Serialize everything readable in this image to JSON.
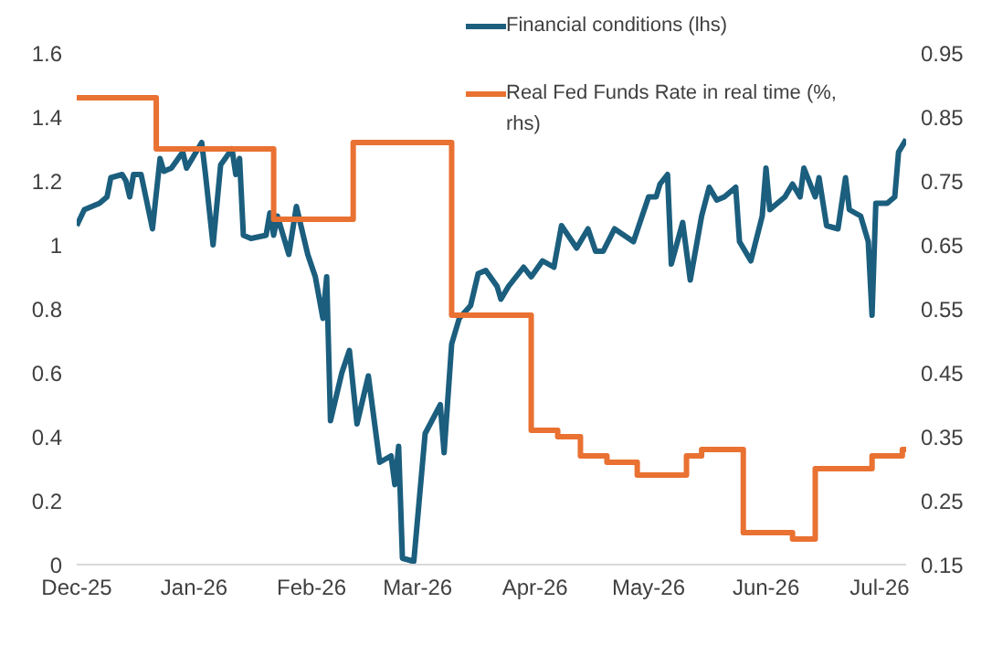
{
  "chart_data": {
    "type": "line",
    "legend": "top right",
    "grid": false,
    "marker": "none",
    "xlim": [
      "2025-12-01",
      "2026-07-08"
    ],
    "xticks": [
      {
        "value": "2025-12-01",
        "label": "Dec-25"
      },
      {
        "value": "2026-01-01",
        "label": "Jan-26"
      },
      {
        "value": "2026-02-01",
        "label": "Feb-26"
      },
      {
        "value": "2026-03-01",
        "label": "Mar-26"
      },
      {
        "value": "2026-04-01",
        "label": "Apr-26"
      },
      {
        "value": "2026-05-01",
        "label": "May-26"
      },
      {
        "value": "2026-06-01",
        "label": "Jun-26"
      },
      {
        "value": "2026-07-01",
        "label": "Jul-26"
      }
    ],
    "ylim": [
      0,
      1.6
    ],
    "yticks": [
      0,
      0.2,
      0.4,
      0.6,
      0.8,
      1,
      1.2,
      1.4,
      1.6
    ],
    "y2lim": [
      0.15,
      0.95
    ],
    "y2ticks": [
      0.15,
      0.25,
      0.35,
      0.45,
      0.55,
      0.65,
      0.75,
      0.85,
      0.95
    ],
    "series": [
      {
        "name": "Financial conditions (lhs)",
        "type": "line",
        "color": "#1b5e7e",
        "x": [
          "2025-12-01",
          "2025-12-03",
          "2025-12-07",
          "2025-12-09",
          "2025-12-10",
          "2025-12-13",
          "2025-12-14",
          "2025-12-15",
          "2025-12-16",
          "2025-12-18",
          "2025-12-21",
          "2025-12-23",
          "2025-12-24",
          "2025-12-26",
          "2025-12-29",
          "2025-12-30",
          "2026-01-03",
          "2026-01-04",
          "2026-01-06",
          "2026-01-08",
          "2026-01-11",
          "2026-01-12",
          "2026-01-13",
          "2026-01-14",
          "2026-01-16",
          "2026-01-20",
          "2026-01-21",
          "2026-01-22",
          "2026-01-23",
          "2026-01-26",
          "2026-01-28",
          "2026-01-31",
          "2026-02-02",
          "2026-02-04",
          "2026-02-05",
          "2026-02-06",
          "2026-02-09",
          "2026-02-11",
          "2026-02-13",
          "2026-02-16",
          "2026-02-19",
          "2026-02-22",
          "2026-02-23",
          "2026-02-24",
          "2026-02-25",
          "2026-02-28",
          "2026-03-03",
          "2026-03-07",
          "2026-03-08",
          "2026-03-10",
          "2026-03-12",
          "2026-03-15",
          "2026-03-17",
          "2026-03-19",
          "2026-03-22",
          "2026-03-23",
          "2026-03-25",
          "2026-03-29",
          "2026-03-31",
          "2026-04-03",
          "2026-04-06",
          "2026-04-08",
          "2026-04-12",
          "2026-04-15",
          "2026-04-17",
          "2026-04-19",
          "2026-04-22",
          "2026-04-27",
          "2026-05-01",
          "2026-05-03",
          "2026-05-04",
          "2026-05-06",
          "2026-05-07",
          "2026-05-10",
          "2026-05-12",
          "2026-05-15",
          "2026-05-17",
          "2026-05-19",
          "2026-05-21",
          "2026-05-24",
          "2026-05-25",
          "2026-05-28",
          "2026-05-31",
          "2026-06-01",
          "2026-06-02",
          "2026-06-06",
          "2026-06-08",
          "2026-06-10",
          "2026-06-11",
          "2026-06-14",
          "2026-06-15",
          "2026-06-17",
          "2026-06-20",
          "2026-06-22",
          "2026-06-23",
          "2026-06-26",
          "2026-06-28",
          "2026-06-29",
          "2026-06-30",
          "2026-07-03",
          "2026-07-05",
          "2026-07-06",
          "2026-07-08"
        ],
        "values": [
          1.06,
          1.11,
          1.13,
          1.15,
          1.21,
          1.22,
          1.2,
          1.15,
          1.22,
          1.22,
          1.05,
          1.27,
          1.23,
          1.24,
          1.29,
          1.24,
          1.32,
          1.22,
          1.0,
          1.25,
          1.3,
          1.22,
          1.27,
          1.03,
          1.02,
          1.03,
          1.1,
          1.03,
          1.09,
          0.97,
          1.12,
          0.97,
          0.9,
          0.77,
          0.9,
          0.45,
          0.6,
          0.67,
          0.44,
          0.59,
          0.32,
          0.34,
          0.25,
          0.37,
          0.02,
          0.01,
          0.41,
          0.5,
          0.35,
          0.69,
          0.77,
          0.81,
          0.91,
          0.92,
          0.87,
          0.83,
          0.87,
          0.93,
          0.9,
          0.95,
          0.93,
          1.06,
          0.99,
          1.05,
          0.98,
          0.98,
          1.05,
          1.01,
          1.15,
          1.15,
          1.19,
          1.22,
          0.94,
          1.07,
          0.89,
          1.09,
          1.18,
          1.14,
          1.15,
          1.18,
          1.01,
          0.95,
          1.09,
          1.24,
          1.11,
          1.15,
          1.19,
          1.15,
          1.24,
          1.15,
          1.21,
          1.06,
          1.05,
          1.21,
          1.11,
          1.09,
          1.01,
          0.78,
          1.13,
          1.13,
          1.15,
          1.29,
          1.33
        ]
      },
      {
        "name": "Real Fed Funds Rate in real time (%, rhs)",
        "type": "step",
        "axis": "y2",
        "color": "#e97132",
        "x": [
          "2025-12-01",
          "2025-12-22",
          "2026-01-22",
          "2026-02-12",
          "2026-03-10",
          "2026-03-31",
          "2026-04-07",
          "2026-04-13",
          "2026-04-20",
          "2026-04-28",
          "2026-05-11",
          "2026-05-15",
          "2026-05-26",
          "2026-06-08",
          "2026-06-14",
          "2026-06-29",
          "2026-07-07",
          "2026-07-08"
        ],
        "values": [
          0.88,
          0.8,
          0.69,
          0.81,
          0.54,
          0.36,
          0.35,
          0.32,
          0.31,
          0.29,
          0.32,
          0.33,
          0.2,
          0.19,
          0.3,
          0.32,
          0.33,
          0.33
        ]
      }
    ]
  }
}
